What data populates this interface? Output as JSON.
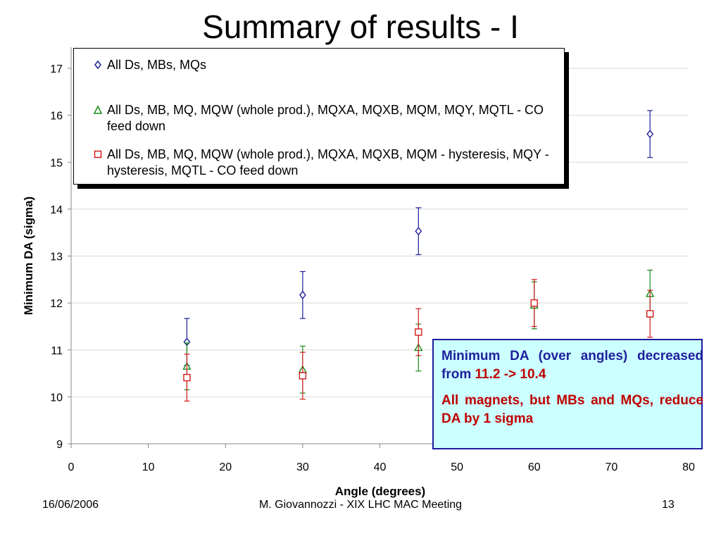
{
  "slide": {
    "title": "Summary of results - I",
    "footer_left": "16/06/2006",
    "footer_center": "M. Giovannozzi - XIX LHC MAC Meeting",
    "footer_right": "13"
  },
  "note": {
    "line1_blue": "Minimum DA (over angles) decreased from",
    "line1_red": "11.2 -> 10.4",
    "line2": "All magnets, but MBs and MQs, reduce DA by 1 sigma"
  },
  "colors": {
    "series1": "#1f1f9c",
    "series2": "#1a8a1a",
    "series3": "#d41c1c",
    "note_bg": "#ccffff"
  },
  "chart_data": {
    "type": "scatter",
    "title": "",
    "xlabel": "Angle (degrees)",
    "ylabel": "Minimum DA (sigma)",
    "xlim": [
      0,
      80
    ],
    "ylim": [
      9,
      17
    ],
    "x_ticks": [
      "0",
      "10",
      "20",
      "30",
      "40",
      "50",
      "60",
      "70",
      "80"
    ],
    "y_ticks": [
      "9",
      "10",
      "11",
      "12",
      "13",
      "14",
      "15",
      "16",
      "17"
    ],
    "grid": "horizontal",
    "legend": "top-left",
    "series": [
      {
        "name": "All Ds, MBs, MQs",
        "marker": "diamond",
        "color": "#1f1f9c",
        "points": [
          {
            "x": 15,
            "y": 11.17,
            "err": 0.5
          },
          {
            "x": 30,
            "y": 12.17,
            "err": 0.5
          },
          {
            "x": 45,
            "y": 13.53,
            "err": 0.5
          },
          {
            "x": 75,
            "y": 15.6,
            "err": 0.5
          }
        ]
      },
      {
        "name": "All Ds, MB, MQ, MQW (whole prod.), MQXA, MQXB, MQM, MQY, MQTL - CO feed down",
        "marker": "triangle",
        "color": "#1a8a1a",
        "points": [
          {
            "x": 15,
            "y": 10.65,
            "err": 0.5
          },
          {
            "x": 30,
            "y": 10.58,
            "err": 0.5
          },
          {
            "x": 45,
            "y": 11.05,
            "err": 0.5
          },
          {
            "x": 60,
            "y": 11.95,
            "err": 0.5
          },
          {
            "x": 75,
            "y": 12.2,
            "err": 0.5
          }
        ]
      },
      {
        "name": "All Ds, MB, MQ, MQW (whole prod.), MQXA, MQXB, MQM - hysteresis, MQY - hysteresis, MQTL - CO feed down",
        "marker": "square",
        "color": "#d41c1c",
        "points": [
          {
            "x": 15,
            "y": 10.41,
            "err": 0.5
          },
          {
            "x": 30,
            "y": 10.45,
            "err": 0.5
          },
          {
            "x": 45,
            "y": 11.38,
            "err": 0.5
          },
          {
            "x": 60,
            "y": 12.0,
            "err": 0.5
          },
          {
            "x": 75,
            "y": 11.77,
            "err": 0.5
          }
        ]
      }
    ]
  }
}
